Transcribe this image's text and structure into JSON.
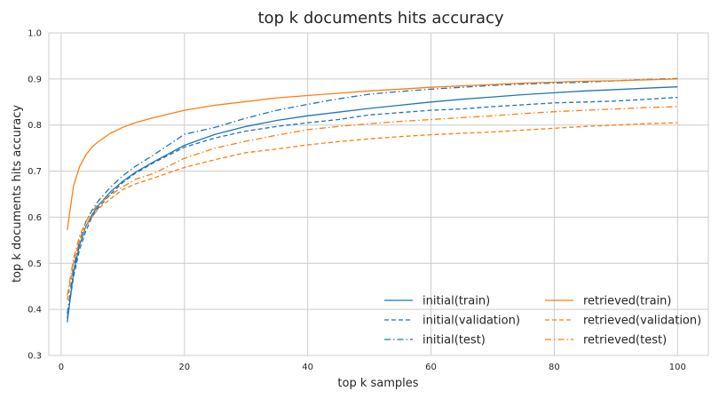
{
  "chart_data": {
    "type": "line",
    "title": "top k documents hits accuracy",
    "xlabel": "top k samples",
    "ylabel": "top k documents hits accuracy",
    "xlim": [
      -2,
      105
    ],
    "ylim": [
      0.3,
      1.0
    ],
    "xticks": [
      "0",
      "20",
      "40",
      "60",
      "80",
      "100"
    ],
    "yticks": [
      "0.3",
      "0.4",
      "0.5",
      "0.6",
      "0.7",
      "0.8",
      "0.9",
      "1.0"
    ],
    "grid": true,
    "legend_placement": "lower-right",
    "x": [
      1,
      2,
      3,
      4,
      5,
      6,
      8,
      10,
      12,
      15,
      20,
      25,
      30,
      35,
      40,
      45,
      50,
      55,
      60,
      65,
      70,
      75,
      80,
      85,
      90,
      95,
      100
    ],
    "series": [
      {
        "name": "initial(train)",
        "color": "#1f77b4",
        "style": "solid",
        "values": [
          0.372,
          0.48,
          0.54,
          0.58,
          0.605,
          0.625,
          0.655,
          0.678,
          0.697,
          0.72,
          0.756,
          0.78,
          0.797,
          0.81,
          0.82,
          0.828,
          0.836,
          0.843,
          0.85,
          0.856,
          0.861,
          0.866,
          0.87,
          0.874,
          0.877,
          0.88,
          0.883
        ]
      },
      {
        "name": "initial(validation)",
        "color": "#1f77b4",
        "style": "dashed",
        "values": [
          0.38,
          0.47,
          0.53,
          0.57,
          0.6,
          0.62,
          0.65,
          0.675,
          0.695,
          0.718,
          0.752,
          0.772,
          0.787,
          0.797,
          0.805,
          0.812,
          0.822,
          0.827,
          0.832,
          0.835,
          0.84,
          0.844,
          0.848,
          0.85,
          0.852,
          0.856,
          0.86
        ]
      },
      {
        "name": "initial(test)",
        "color": "#1f77b4",
        "style": "dashdot",
        "values": [
          0.39,
          0.49,
          0.55,
          0.59,
          0.615,
          0.635,
          0.665,
          0.69,
          0.71,
          0.735,
          0.78,
          0.795,
          0.815,
          0.832,
          0.845,
          0.857,
          0.867,
          0.873,
          0.878,
          0.882,
          0.886,
          0.889,
          0.891,
          0.893,
          0.896,
          0.899,
          0.901
        ]
      },
      {
        "name": "retrieved(train)",
        "color": "#ff7f0e",
        "style": "solid",
        "values": [
          0.572,
          0.668,
          0.71,
          0.735,
          0.752,
          0.764,
          0.782,
          0.795,
          0.805,
          0.816,
          0.832,
          0.843,
          0.851,
          0.859,
          0.864,
          0.869,
          0.874,
          0.878,
          0.882,
          0.885,
          0.888,
          0.891,
          0.893,
          0.895,
          0.896,
          0.898,
          0.9
        ]
      },
      {
        "name": "retrieved(validation)",
        "color": "#ff7f0e",
        "style": "dashed",
        "values": [
          0.42,
          0.5,
          0.55,
          0.58,
          0.6,
          0.618,
          0.64,
          0.66,
          0.672,
          0.685,
          0.708,
          0.725,
          0.74,
          0.748,
          0.757,
          0.764,
          0.77,
          0.775,
          0.779,
          0.782,
          0.785,
          0.789,
          0.793,
          0.797,
          0.8,
          0.803,
          0.805
        ]
      },
      {
        "name": "retrieved(test)",
        "color": "#ff7f0e",
        "style": "dashdot",
        "values": [
          0.43,
          0.51,
          0.56,
          0.59,
          0.612,
          0.628,
          0.648,
          0.666,
          0.682,
          0.695,
          0.728,
          0.75,
          0.765,
          0.778,
          0.79,
          0.797,
          0.803,
          0.808,
          0.812,
          0.816,
          0.82,
          0.825,
          0.829,
          0.832,
          0.835,
          0.838,
          0.84
        ]
      }
    ]
  }
}
